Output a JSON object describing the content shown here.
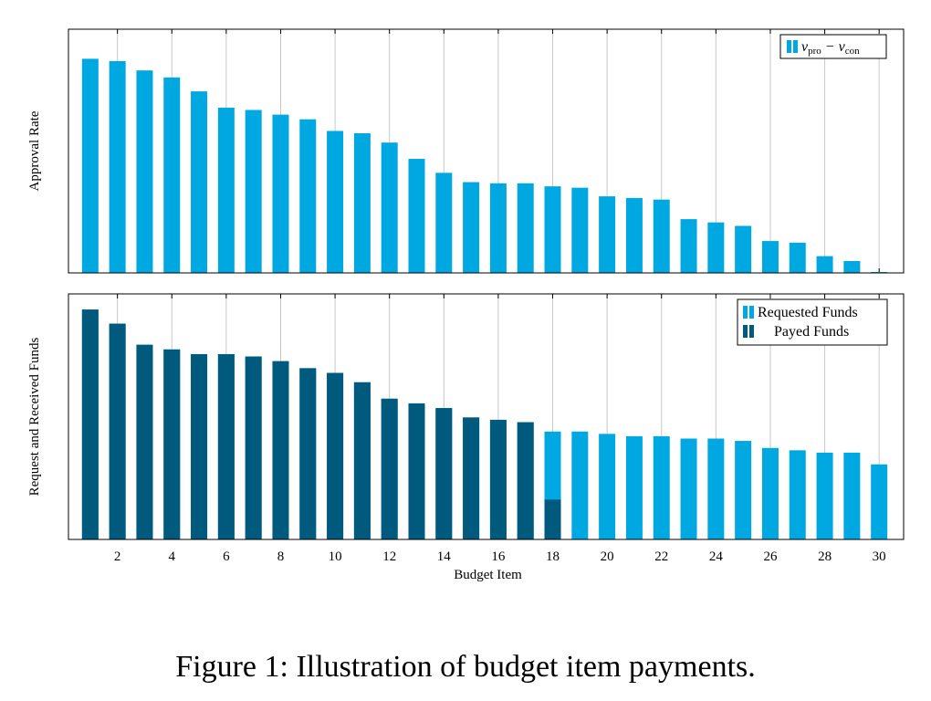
{
  "caption": "Figure 1: Illustration of budget item payments.",
  "colors": {
    "light": "#00a8e1",
    "dark": "#005a7d",
    "grid": "#c8c8c8"
  },
  "chart_data": [
    {
      "type": "bar",
      "ylabel": "Approval Rate",
      "grid": "vertical",
      "legend_position": "top-right",
      "series": [
        {
          "name": "v_pro − v_con",
          "legend_base": "v",
          "legend_sub1": "pro",
          "legend_mid": " − v",
          "legend_sub2": "con",
          "color": "#00a8e1",
          "x": [
            1,
            2,
            3,
            4,
            5,
            6,
            7,
            8,
            9,
            10,
            11,
            12,
            13,
            14,
            15,
            16,
            17,
            18,
            19,
            20,
            21,
            22,
            23,
            24,
            25,
            26,
            27,
            28,
            29,
            30
          ],
          "values": [
            0.92,
            0.91,
            0.87,
            0.84,
            0.78,
            0.71,
            0.7,
            0.68,
            0.66,
            0.61,
            0.6,
            0.56,
            0.49,
            0.43,
            0.39,
            0.385,
            0.385,
            0.372,
            0.366,
            0.329,
            0.322,
            0.315,
            0.231,
            0.217,
            0.202,
            0.137,
            0.13,
            0.072,
            0.051,
            0.004
          ]
        }
      ],
      "ylim": [
        0,
        1
      ],
      "xlim": [
        0.2,
        30.9
      ]
    },
    {
      "type": "bar",
      "ylabel": "Request and Received Funds",
      "xlabel": "Budget Item",
      "grid": "vertical",
      "legend_position": "top-right",
      "xticks": [
        2,
        4,
        6,
        8,
        10,
        12,
        14,
        16,
        18,
        20,
        22,
        24,
        26,
        28,
        30
      ],
      "series": [
        {
          "name": "Requested Funds",
          "color": "#00a8e1",
          "x": [
            1,
            2,
            3,
            4,
            5,
            6,
            7,
            8,
            9,
            10,
            11,
            12,
            13,
            14,
            15,
            16,
            17,
            18,
            19,
            20,
            21,
            22,
            23,
            24,
            25,
            26,
            27,
            28,
            29,
            30
          ],
          "values": [
            0.98,
            0.92,
            0.83,
            0.81,
            0.79,
            0.79,
            0.78,
            0.76,
            0.73,
            0.71,
            0.67,
            0.6,
            0.58,
            0.56,
            0.52,
            0.51,
            0.5,
            0.46,
            0.46,
            0.45,
            0.44,
            0.44,
            0.43,
            0.43,
            0.42,
            0.39,
            0.38,
            0.37,
            0.37,
            0.32
          ]
        },
        {
          "name": "Payed Funds",
          "color": "#005a7d",
          "x": [
            1,
            2,
            3,
            4,
            5,
            6,
            7,
            8,
            9,
            10,
            11,
            12,
            13,
            14,
            15,
            16,
            17,
            18,
            19,
            20,
            21,
            22,
            23,
            24,
            25,
            26,
            27,
            28,
            29,
            30
          ],
          "values": [
            0.98,
            0.92,
            0.83,
            0.81,
            0.79,
            0.79,
            0.78,
            0.76,
            0.73,
            0.71,
            0.67,
            0.6,
            0.58,
            0.56,
            0.52,
            0.51,
            0.5,
            0.17,
            0,
            0,
            0,
            0,
            0,
            0,
            0,
            0,
            0,
            0,
            0,
            0
          ]
        }
      ],
      "ylim": [
        0,
        1
      ],
      "xlim": [
        0.2,
        30.9
      ]
    }
  ]
}
